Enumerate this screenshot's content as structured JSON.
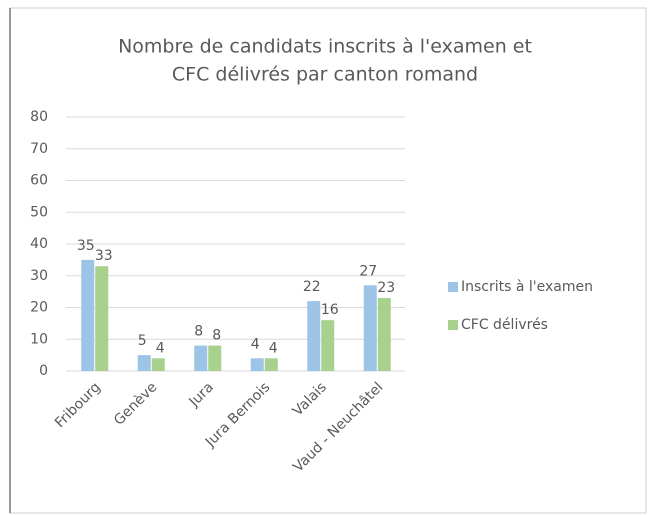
{
  "chart_data": {
    "type": "bar",
    "title": [
      "Nombre de candidats inscrits à l'examen et",
      "CFC délivrés par canton romand"
    ],
    "categories": [
      "Fribourg",
      "Genève",
      "Jura",
      "Jura Bernois",
      "Valais",
      "Vaud - Neuchâtel"
    ],
    "series": [
      {
        "name": "Inscrits à l'examen",
        "color": "#9dc3e6",
        "values": [
          35,
          5,
          8,
          4,
          22,
          27
        ]
      },
      {
        "name": "CFC délivrés",
        "color": "#a9d18e",
        "values": [
          33,
          4,
          8,
          4,
          16,
          23
        ]
      }
    ],
    "ylim": [
      0,
      80
    ],
    "yticks": [
      0,
      10,
      20,
      30,
      40,
      50,
      60,
      70,
      80
    ],
    "grid": true,
    "legend": "right"
  }
}
